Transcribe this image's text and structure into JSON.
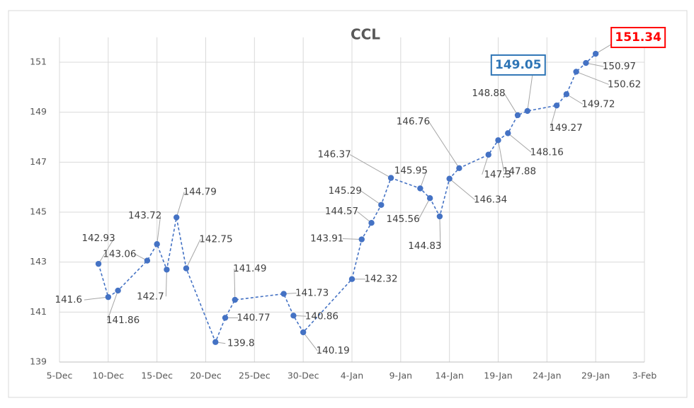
{
  "chart_data": {
    "type": "line",
    "title": "CCL",
    "x": [
      "9-Dec",
      "10-Dec",
      "11-Dec",
      "14-Dec",
      "15-Dec",
      "16-Dec",
      "17-Dec",
      "18-Dec",
      "21-Dec",
      "22-Dec",
      "23-Dec",
      "28-Dec",
      "29-Dec",
      "30-Dec",
      "4-Jan",
      "5-Jan",
      "6-Jan",
      "7-Jan",
      "8-Jan",
      "11-Jan",
      "12-Jan",
      "13-Jan",
      "14-Jan",
      "15-Jan",
      "18-Jan",
      "19-Jan",
      "20-Jan",
      "21-Jan",
      "22-Jan",
      "25-Jan",
      "26-Jan",
      "27-Jan",
      "28-Jan",
      "29-Jan"
    ],
    "series": [
      {
        "name": "CCL",
        "color": "#4472c4",
        "values": [
          142.93,
          141.6,
          141.86,
          143.06,
          143.72,
          142.7,
          144.79,
          142.75,
          139.8,
          140.77,
          141.49,
          141.73,
          140.86,
          140.19,
          142.32,
          143.91,
          144.57,
          145.29,
          146.37,
          145.95,
          145.56,
          144.83,
          146.34,
          146.76,
          147.3,
          147.88,
          148.16,
          148.88,
          149.05,
          149.27,
          149.72,
          150.62,
          150.97,
          151.34
        ],
        "label_colors": [
          null,
          null,
          null,
          null,
          null,
          null,
          null,
          null,
          null,
          null,
          null,
          null,
          null,
          null,
          null,
          null,
          null,
          null,
          null,
          null,
          null,
          null,
          null,
          null,
          null,
          null,
          null,
          null,
          "#2e75b6",
          null,
          null,
          null,
          null,
          "#ff0000"
        ]
      }
    ],
    "xlim": [
      "5-Dec",
      "3-Feb"
    ],
    "xticks": [
      "5-Dec",
      "10-Dec",
      "15-Dec",
      "20-Dec",
      "25-Dec",
      "30-Dec",
      "4-Jan",
      "9-Jan",
      "14-Jan",
      "19-Jan",
      "24-Jan",
      "29-Jan",
      "3-Feb"
    ],
    "ylim": [
      139,
      152
    ],
    "yticks": [
      139,
      141,
      143,
      145,
      147,
      149,
      151
    ],
    "grid": true
  }
}
